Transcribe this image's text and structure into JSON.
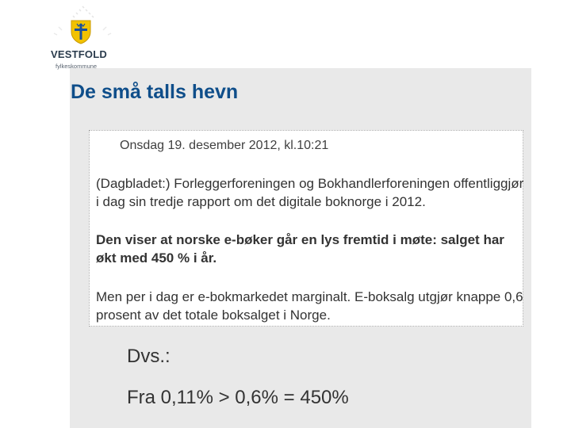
{
  "header": {
    "brand_name": "VESTFOLD",
    "brand_subtitle": "fylkeskommune",
    "accent_color": "#0f4e8a"
  },
  "slide": {
    "title": "De små talls hevn"
  },
  "article": {
    "dateline": "Onsdag 19. desember 2012, kl.10:21",
    "paragraph1": "(Dagbladet:) Forleggerforeningen og Bokhandlerforeningen offentliggjør i dag sin tredje rapport om det digitale boknorge i 2012.",
    "paragraph2": "Den viser at norske e-bøker går en lys fremtid i møte: salget har økt med 450 % i år.",
    "paragraph3": "Men per i dag er e-bokmarkedet marginalt. E-boksalg utgjør knappe 0,6 prosent av det totale boksalget i Norge."
  },
  "conclusion": {
    "label": "Dvs.:",
    "formula": "Fra 0,11% > 0,6% = 450%"
  }
}
